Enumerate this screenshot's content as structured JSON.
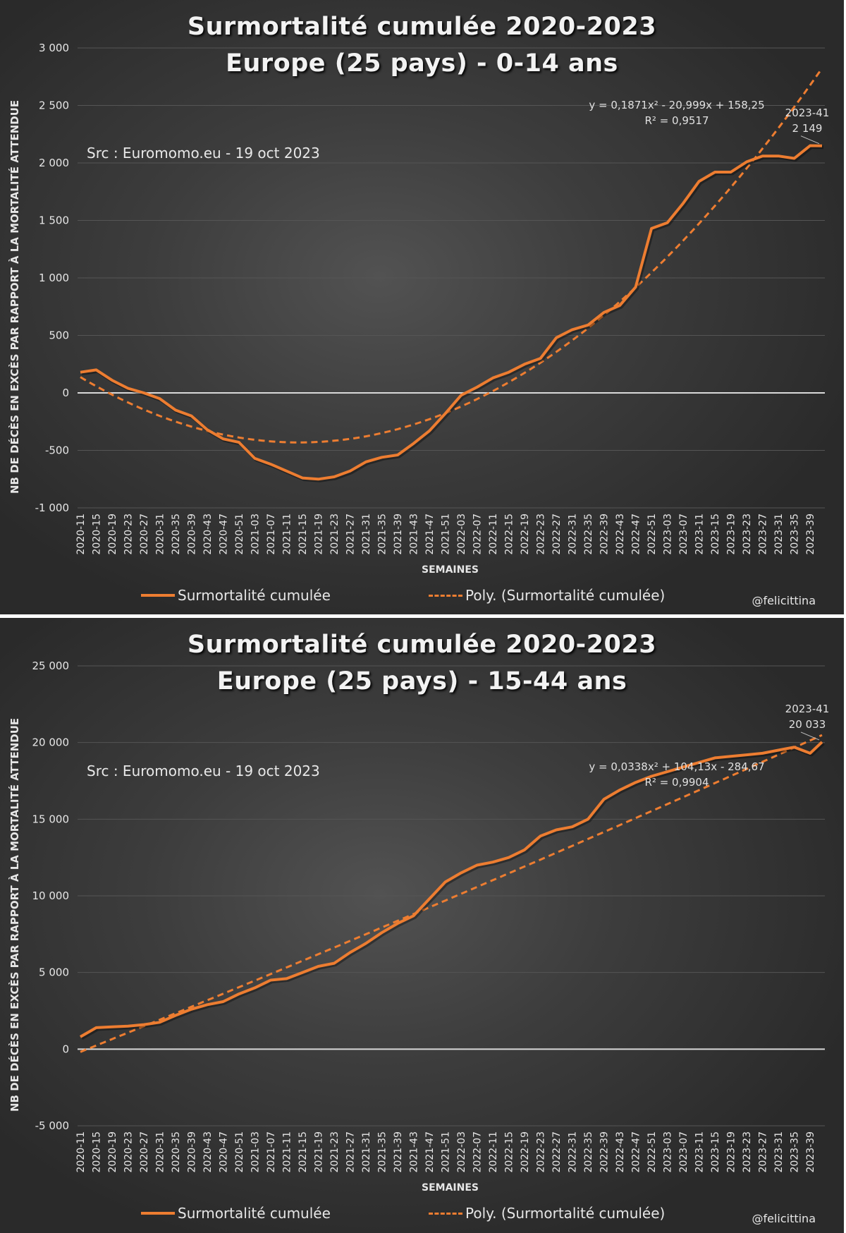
{
  "chart_data": [
    {
      "type": "line",
      "title": "Surmortalité cumulée 2020-2023",
      "subtitle": "Europe (25 pays) - 0-14 ans",
      "source_note": "Src : Euromomo.eu  - 19 oct 2023",
      "xlabel": "SEMAINES",
      "ylabel": "NB DE DÉCÈS EN EXCÈS PAR RAPPORT À LA MORTALITÉ ATTENDUE",
      "ylim": [
        -1000,
        3000
      ],
      "yticks": [
        3000,
        2500,
        2000,
        1500,
        1000,
        500,
        0,
        -500,
        -1000
      ],
      "ytick_labels": [
        "3 000",
        "2 500",
        "2 000",
        "1 500",
        "1 000",
        "500",
        "0",
        "-500",
        "-1 000"
      ],
      "grid": true,
      "legend_position": "bottom",
      "x": [
        "2020-11",
        "2020-15",
        "2020-19",
        "2020-23",
        "2020-27",
        "2020-31",
        "2020-35",
        "2020-39",
        "2020-43",
        "2020-47",
        "2020-51",
        "2021-03",
        "2021-07",
        "2021-11",
        "2021-15",
        "2021-19",
        "2021-23",
        "2021-27",
        "2021-31",
        "2021-35",
        "2021-39",
        "2021-43",
        "2021-47",
        "2021-51",
        "2022-03",
        "2022-07",
        "2022-11",
        "2022-15",
        "2022-19",
        "2022-23",
        "2022-27",
        "2022-31",
        "2022-35",
        "2022-39",
        "2022-43",
        "2022-47",
        "2022-51",
        "2023-03",
        "2023-07",
        "2023-11",
        "2023-15",
        "2023-19",
        "2023-23",
        "2023-27",
        "2023-31",
        "2023-35",
        "2023-39",
        "2023-41"
      ],
      "series": [
        {
          "name": "Surmortalité cumulée",
          "style": "solid",
          "values": [
            180,
            200,
            110,
            40,
            0,
            -50,
            -150,
            -200,
            -320,
            -400,
            -430,
            -570,
            -620,
            -680,
            -740,
            -750,
            -730,
            -680,
            -600,
            -560,
            -540,
            -440,
            -330,
            -180,
            -20,
            50,
            130,
            180,
            250,
            300,
            480,
            550,
            590,
            700,
            760,
            920,
            1430,
            1480,
            1650,
            1840,
            1920,
            1920,
            2010,
            2060,
            2060,
            2040,
            2150,
            2149
          ]
        },
        {
          "name": "Poly. (Surmortalité cumulée)",
          "style": "dashed",
          "trendline": {
            "a": 0.1871,
            "b": -20.999,
            "c": 158.25
          }
        }
      ],
      "equation": "y = 0,1871x² - 20,999x + 158,25",
      "r_squared": "R² = 0,9517",
      "last_point_label": {
        "week": "2023-41",
        "value": "2 149"
      },
      "x_tick_labels": [
        "2020-11",
        "2020-15",
        "2020-19",
        "2020-23",
        "2020-27",
        "2020-31",
        "2020-35",
        "2020-39",
        "2020-43",
        "2020-47",
        "2020-51",
        "2021-03",
        "2021-07",
        "2021-11",
        "2021-15",
        "2021-19",
        "2021-23",
        "2021-27",
        "2021-31",
        "2021-35",
        "2021-39",
        "2021-43",
        "2021-47",
        "2021-51",
        "2022-03",
        "2022-07",
        "2022-11",
        "2022-15",
        "2022-19",
        "2022-23",
        "2022-27",
        "2022-31",
        "2022-35",
        "2022-39",
        "2022-43",
        "2022-47",
        "2022-51",
        "2023-03",
        "2023-07",
        "2023-11",
        "2023-15",
        "2023-19",
        "2023-23",
        "2023-27",
        "2023-31",
        "2023-35",
        "2023-39"
      ],
      "credit": "@felicittina",
      "colors": {
        "line": "#ED7D31",
        "zero_line": "#d9d9d9",
        "grid": "#555555"
      }
    },
    {
      "type": "line",
      "title": "Surmortalité cumulée 2020-2023",
      "subtitle": "Europe (25 pays) - 15-44 ans",
      "source_note": "Src : Euromomo.eu  - 19 oct 2023",
      "xlabel": "SEMAINES",
      "ylabel": "NB DE DÉCÈS EN EXCÈS PAR RAPPORT À LA MORTALITÉ ATTENDUE",
      "ylim": [
        -5000,
        25000
      ],
      "yticks": [
        25000,
        20000,
        15000,
        10000,
        5000,
        0,
        -5000
      ],
      "ytick_labels": [
        "25 000",
        "20 000",
        "15 000",
        "10 000",
        "5 000",
        "0",
        "-5 000"
      ],
      "grid": true,
      "legend_position": "bottom",
      "x": [
        "2020-11",
        "2020-15",
        "2020-19",
        "2020-23",
        "2020-27",
        "2020-31",
        "2020-35",
        "2020-39",
        "2020-43",
        "2020-47",
        "2020-51",
        "2021-03",
        "2021-07",
        "2021-11",
        "2021-15",
        "2021-19",
        "2021-23",
        "2021-27",
        "2021-31",
        "2021-35",
        "2021-39",
        "2021-43",
        "2021-47",
        "2021-51",
        "2022-03",
        "2022-07",
        "2022-11",
        "2022-15",
        "2022-19",
        "2022-23",
        "2022-27",
        "2022-31",
        "2022-35",
        "2022-39",
        "2022-43",
        "2022-47",
        "2022-51",
        "2023-03",
        "2023-07",
        "2023-11",
        "2023-15",
        "2023-19",
        "2023-23",
        "2023-27",
        "2023-31",
        "2023-35",
        "2023-39",
        "2023-41"
      ],
      "series": [
        {
          "name": "Surmortalité cumulée",
          "style": "solid",
          "values": [
            800,
            1400,
            1450,
            1500,
            1600,
            1750,
            2200,
            2600,
            2900,
            3100,
            3600,
            4000,
            4500,
            4600,
            5000,
            5400,
            5600,
            6300,
            6900,
            7600,
            8200,
            8700,
            9800,
            10900,
            11500,
            12000,
            12200,
            12500,
            13000,
            13900,
            14300,
            14500,
            15000,
            16300,
            16900,
            17400,
            17800,
            18100,
            18400,
            18700,
            19000,
            19100,
            19200,
            19300,
            19500,
            19700,
            19300,
            20033
          ]
        },
        {
          "name": "Poly. (Surmortalité cumulée)",
          "style": "dashed",
          "trendline": {
            "a": 0.0338,
            "b": 104.13,
            "c": -284.67
          }
        }
      ],
      "equation": "y = 0,0338x² + 104,13x - 284,67",
      "r_squared": "R² = 0,9904",
      "last_point_label": {
        "week": "2023-41",
        "value": "20 033"
      },
      "x_tick_labels": [
        "2020-11",
        "2020-15",
        "2020-19",
        "2020-23",
        "2020-27",
        "2020-31",
        "2020-35",
        "2020-39",
        "2020-43",
        "2020-47",
        "2020-51",
        "2021-03",
        "2021-07",
        "2021-11",
        "2021-15",
        "2021-19",
        "2021-23",
        "2021-27",
        "2021-31",
        "2021-35",
        "2021-39",
        "2021-43",
        "2021-47",
        "2021-51",
        "2022-03",
        "2022-07",
        "2022-11",
        "2022-15",
        "2022-19",
        "2022-23",
        "2022-27",
        "2022-31",
        "2022-35",
        "2022-39",
        "2022-43",
        "2022-47",
        "2022-51",
        "2023-03",
        "2023-07",
        "2023-11",
        "2023-15",
        "2023-19",
        "2023-23",
        "2023-27",
        "2023-31",
        "2023-35",
        "2023-39"
      ],
      "credit": "@felicittina",
      "colors": {
        "line": "#ED7D31",
        "zero_line": "#d9d9d9",
        "grid": "#555555"
      }
    }
  ]
}
